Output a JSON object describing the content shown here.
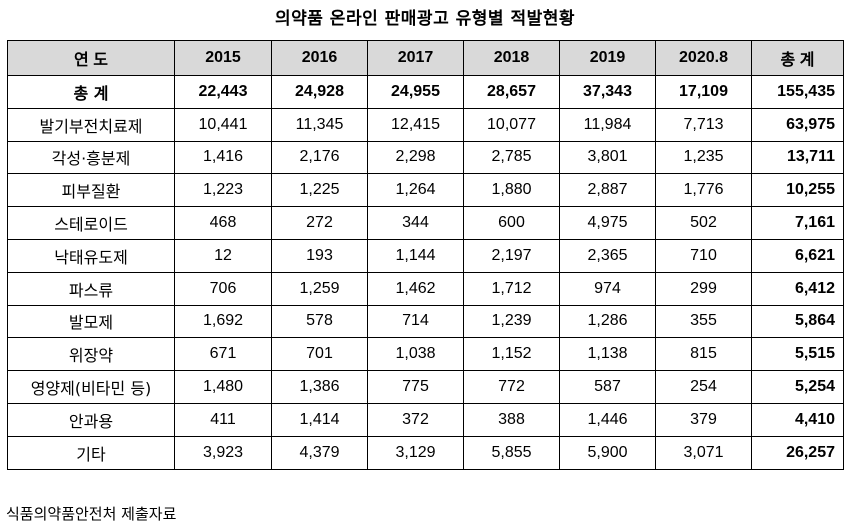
{
  "title": "의약품 온라인 판매광고 유형별 적발현황",
  "header": {
    "category_label": "연 도",
    "years": [
      "2015",
      "2016",
      "2017",
      "2018",
      "2019",
      "2020.8"
    ],
    "total_label": "총 계"
  },
  "rows": [
    {
      "name": "총 계",
      "values": [
        "22,443",
        "24,928",
        "24,955",
        "28,657",
        "37,343",
        "17,109"
      ],
      "total": "155,435"
    },
    {
      "name": "발기부전치료제",
      "values": [
        "10,441",
        "11,345",
        "12,415",
        "10,077",
        "11,984",
        "7,713"
      ],
      "total": "63,975"
    },
    {
      "name": "각성·흥분제",
      "values": [
        "1,416",
        "2,176",
        "2,298",
        "2,785",
        "3,801",
        "1,235"
      ],
      "total": "13,711"
    },
    {
      "name": "피부질환",
      "values": [
        "1,223",
        "1,225",
        "1,264",
        "1,880",
        "2,887",
        "1,776"
      ],
      "total": "10,255"
    },
    {
      "name": "스테로이드",
      "values": [
        "468",
        "272",
        "344",
        "600",
        "4,975",
        "502"
      ],
      "total": "7,161"
    },
    {
      "name": "낙태유도제",
      "values": [
        "12",
        "193",
        "1,144",
        "2,197",
        "2,365",
        "710"
      ],
      "total": "6,621"
    },
    {
      "name": "파스류",
      "values": [
        "706",
        "1,259",
        "1,462",
        "1,712",
        "974",
        "299"
      ],
      "total": "6,412"
    },
    {
      "name": "발모제",
      "values": [
        "1,692",
        "578",
        "714",
        "1,239",
        "1,286",
        "355"
      ],
      "total": "5,864"
    },
    {
      "name": "위장약",
      "values": [
        "671",
        "701",
        "1,038",
        "1,152",
        "1,138",
        "815"
      ],
      "total": "5,515"
    },
    {
      "name": "영양제(비타민 등)",
      "values": [
        "1,480",
        "1,386",
        "775",
        "772",
        "587",
        "254"
      ],
      "total": "5,254"
    },
    {
      "name": "안과용",
      "values": [
        "411",
        "1,414",
        "372",
        "388",
        "1,446",
        "379"
      ],
      "total": "4,410"
    },
    {
      "name": "기타",
      "values": [
        "3,923",
        "4,379",
        "3,129",
        "5,855",
        "5,900",
        "3,071"
      ],
      "total": "26,257"
    }
  ],
  "footer": "식품의약품안전처 제출자료"
}
